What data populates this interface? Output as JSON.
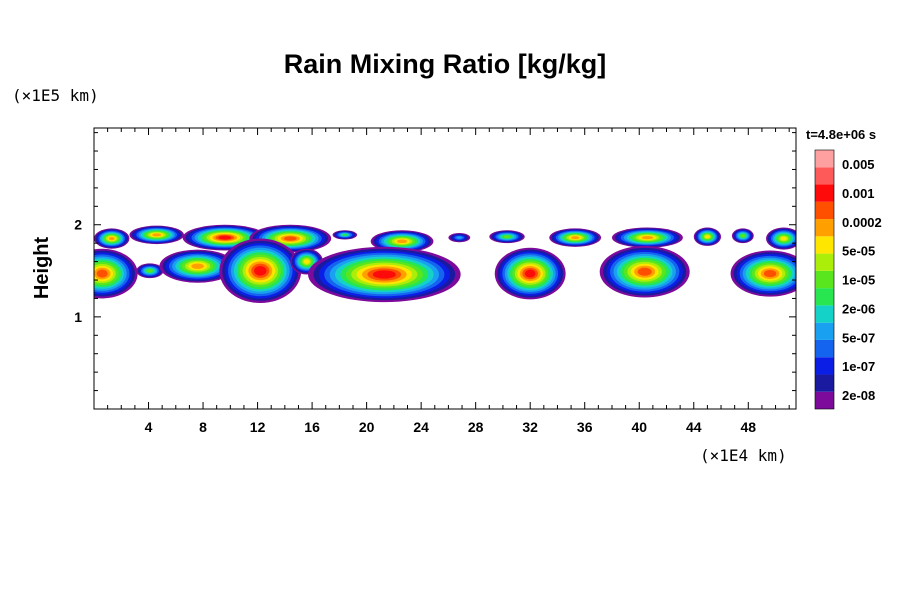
{
  "chart_data": {
    "type": "heatmap",
    "title": "Rain Mixing Ratio [kg/kg]",
    "ylabel": "Height",
    "xlabel": "",
    "x_unit": "(×1E4 km)",
    "y_unit": "(×1E5 km)",
    "time_label": "t=4.8e+06 s",
    "xlim": [
      0,
      51.5
    ],
    "ylim": [
      0,
      3.05
    ],
    "x_ticks": [
      4,
      8,
      12,
      16,
      20,
      24,
      28,
      32,
      36,
      40,
      44,
      48
    ],
    "x_tick_labels": [
      "4",
      "8",
      "12",
      "16",
      "20",
      "24",
      "28",
      "32",
      "36",
      "40",
      "44",
      "48"
    ],
    "y_ticks": [
      1,
      2
    ],
    "y_tick_labels": [
      "1",
      "2"
    ],
    "colorbar": {
      "labels": [
        "0.005",
        "0.001",
        "0.0002",
        "5e-05",
        "1e-05",
        "2e-06",
        "5e-07",
        "1e-07",
        "2e-08"
      ],
      "colors": [
        "#7e0a9c",
        "#1a1aa0",
        "#0a1ee6",
        "#1464f0",
        "#1aa0f0",
        "#14d2c8",
        "#28e650",
        "#5ae61e",
        "#aaee0a",
        "#ffe600",
        "#ffa000",
        "#ff5000",
        "#ff0a0a",
        "#ff5a5a",
        "#ffa0a0"
      ]
    },
    "cells": [
      {
        "x": 1.3,
        "y": 1.85,
        "rx": 1.3,
        "ry": 0.11,
        "level": 10
      },
      {
        "x": 4.6,
        "y": 1.89,
        "rx": 2.0,
        "ry": 0.1,
        "level": 10
      },
      {
        "x": 9.6,
        "y": 1.86,
        "rx": 3.1,
        "ry": 0.14,
        "level": 12
      },
      {
        "x": 14.4,
        "y": 1.85,
        "rx": 3.0,
        "ry": 0.15,
        "level": 11
      },
      {
        "x": 18.4,
        "y": 1.89,
        "rx": 0.9,
        "ry": 0.05,
        "level": 6
      },
      {
        "x": 22.6,
        "y": 1.82,
        "rx": 2.3,
        "ry": 0.12,
        "level": 10
      },
      {
        "x": 26.8,
        "y": 1.86,
        "rx": 0.8,
        "ry": 0.05,
        "level": 4
      },
      {
        "x": 30.3,
        "y": 1.87,
        "rx": 1.3,
        "ry": 0.07,
        "level": 7
      },
      {
        "x": 35.3,
        "y": 1.86,
        "rx": 1.9,
        "ry": 0.1,
        "level": 10
      },
      {
        "x": 40.6,
        "y": 1.86,
        "rx": 2.6,
        "ry": 0.11,
        "level": 10
      },
      {
        "x": 45.0,
        "y": 1.87,
        "rx": 1.0,
        "ry": 0.1,
        "level": 9
      },
      {
        "x": 47.6,
        "y": 1.88,
        "rx": 0.8,
        "ry": 0.08,
        "level": 7
      },
      {
        "x": 50.6,
        "y": 1.85,
        "rx": 1.3,
        "ry": 0.12,
        "level": 9
      },
      {
        "x": 0.6,
        "y": 1.47,
        "rx": 2.6,
        "ry": 0.27,
        "level": 11
      },
      {
        "x": 4.1,
        "y": 1.5,
        "rx": 1.0,
        "ry": 0.08,
        "level": 7
      },
      {
        "x": 7.6,
        "y": 1.55,
        "rx": 2.8,
        "ry": 0.18,
        "level": 10
      },
      {
        "x": 12.2,
        "y": 1.5,
        "rx": 3.0,
        "ry": 0.35,
        "level": 12
      },
      {
        "x": 15.6,
        "y": 1.6,
        "rx": 1.2,
        "ry": 0.14,
        "level": 9
      },
      {
        "x": 21.3,
        "y": 1.46,
        "rx": 5.6,
        "ry": 0.3,
        "level": 12
      },
      {
        "x": 32.0,
        "y": 1.47,
        "rx": 2.6,
        "ry": 0.28,
        "level": 12
      },
      {
        "x": 40.4,
        "y": 1.49,
        "rx": 3.3,
        "ry": 0.28,
        "level": 11
      },
      {
        "x": 49.6,
        "y": 1.47,
        "rx": 2.9,
        "ry": 0.25,
        "level": 11
      }
    ]
  }
}
